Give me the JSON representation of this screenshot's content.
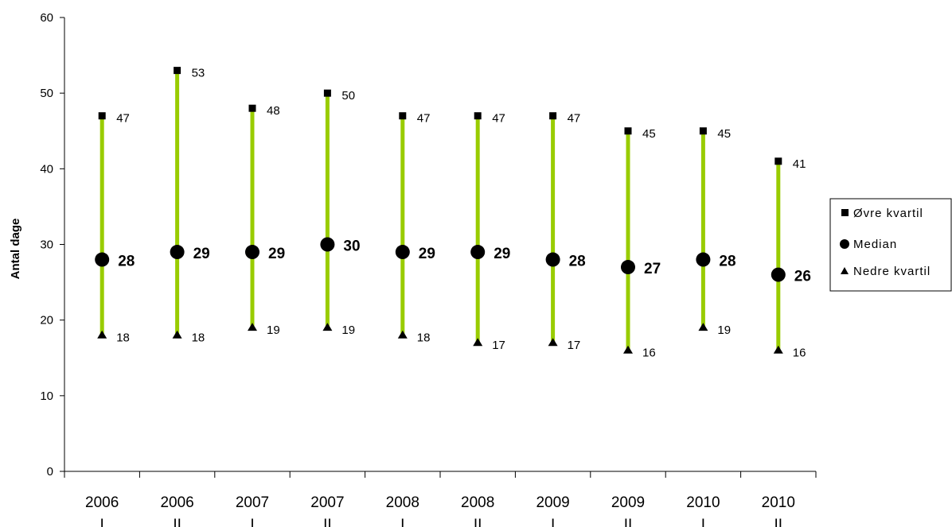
{
  "chart_data": {
    "type": "scatter",
    "title": "",
    "xlabel": "",
    "ylabel": "Antal dage",
    "ylim": [
      0,
      60
    ],
    "yticks": [
      0,
      10,
      20,
      30,
      40,
      50,
      60
    ],
    "grid": false,
    "legend_position": "right",
    "categories": [
      {
        "year": "2006",
        "half": "I"
      },
      {
        "year": "2006",
        "half": "II"
      },
      {
        "year": "2007",
        "half": "I"
      },
      {
        "year": "2007",
        "half": "II"
      },
      {
        "year": "2008",
        "half": "I"
      },
      {
        "year": "2008",
        "half": "II"
      },
      {
        "year": "2009",
        "half": "I"
      },
      {
        "year": "2009",
        "half": "II"
      },
      {
        "year": "2010",
        "half": "I"
      },
      {
        "year": "2010",
        "half": "II"
      }
    ],
    "series": [
      {
        "name": "Øvre kvartil",
        "marker": "square",
        "values": [
          47,
          53,
          48,
          50,
          47,
          47,
          47,
          45,
          45,
          41
        ]
      },
      {
        "name": "Median",
        "marker": "circle",
        "values": [
          28,
          29,
          29,
          30,
          29,
          29,
          28,
          27,
          28,
          26
        ]
      },
      {
        "name": "Nedre kvartil",
        "marker": "triangle",
        "values": [
          18,
          18,
          19,
          19,
          18,
          17,
          17,
          16,
          19,
          16
        ]
      }
    ],
    "colors": {
      "range_bar": "#99cc00",
      "marker": "#000000"
    }
  }
}
